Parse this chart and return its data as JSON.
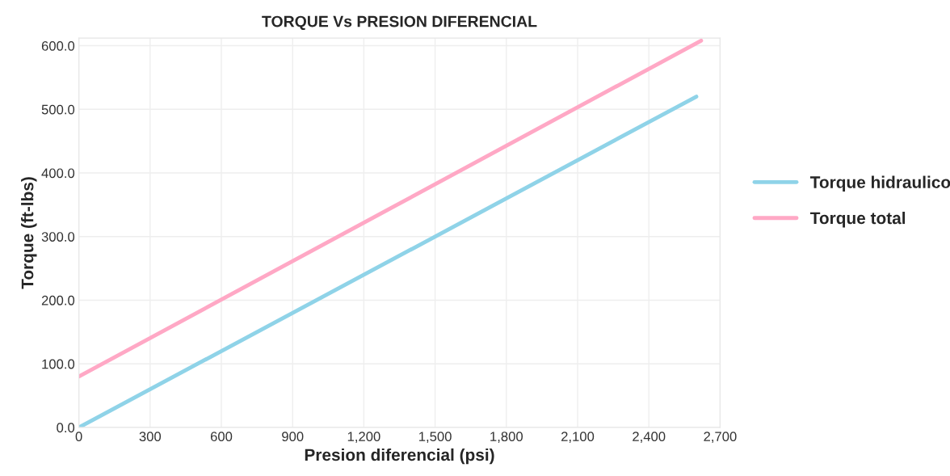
{
  "chart_data": {
    "type": "line",
    "title": "TORQUE Vs PRESION DIFERENCIAL",
    "xlabel": "Presion diferencial (psi)",
    "ylabel": "Torque (ft-lbs)",
    "series": [
      {
        "name": "Torque hidraulico",
        "color": "#8fd3e8",
        "x": [
          0,
          2600
        ],
        "values": [
          0,
          520
        ]
      },
      {
        "name": "Torque total",
        "color": "#ffa8c5",
        "x": [
          0,
          2620
        ],
        "values": [
          80,
          608
        ]
      }
    ],
    "xlim": [
      0,
      2700
    ],
    "ylim": [
      0,
      612
    ],
    "xticks": [
      0,
      300,
      600,
      900,
      {
        "value": 1200,
        "label": "1,200"
      },
      {
        "value": 1500,
        "label": "1,500"
      },
      {
        "value": 1800,
        "label": "1,800"
      },
      {
        "value": 2100,
        "label": "2,100"
      },
      {
        "value": 2400,
        "label": "2,400"
      },
      {
        "value": 2700,
        "label": "2,700"
      }
    ],
    "yticks": [
      {
        "value": 0,
        "label": "0.0"
      },
      {
        "value": 100,
        "label": "100.0"
      },
      {
        "value": 200,
        "label": "200.0"
      },
      {
        "value": 300,
        "label": "300.0"
      },
      {
        "value": 400,
        "label": "400.0"
      },
      {
        "value": 500,
        "label": "500.0"
      },
      {
        "value": 600,
        "label": "600.0"
      }
    ],
    "grid": true,
    "legend": "right",
    "marker": "none",
    "line_style": "solid"
  }
}
